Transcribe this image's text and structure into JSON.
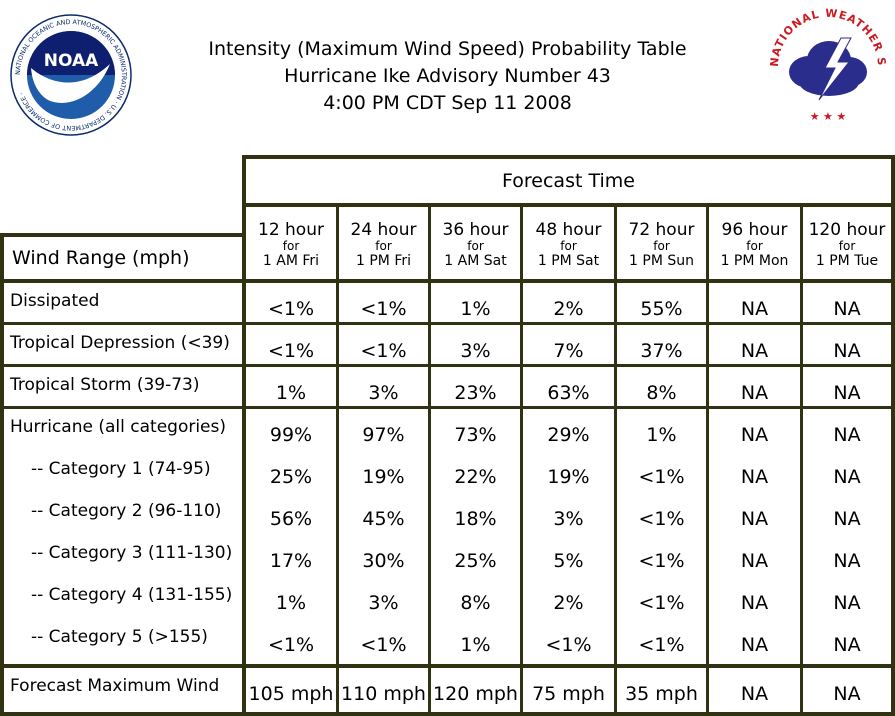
{
  "title": {
    "line1": "Intensity (Maximum Wind Speed) Probability Table",
    "line2": "Hurricane Ike Advisory Number 43",
    "line3": "4:00 PM CDT Sep 11 2008"
  },
  "logos": {
    "noaa_text": "NOAA",
    "noaa_ring_text": "NATIONAL OCEANIC AND ATMOSPHERIC ADMINISTRATION · U.S. DEPARTMENT OF COMMERCE ·",
    "nws_ring_text": "NATIONAL WEATHER SERVICE"
  },
  "table": {
    "forecast_time_label": "Forecast Time",
    "wind_range_label": "Wind Range (mph)",
    "columns": [
      {
        "hours": "12 hour",
        "for": "for",
        "when": "1 AM Fri"
      },
      {
        "hours": "24 hour",
        "for": "for",
        "when": "1 PM Fri"
      },
      {
        "hours": "36 hour",
        "for": "for",
        "when": "1 AM Sat"
      },
      {
        "hours": "48 hour",
        "for": "for",
        "when": "1 PM Sat"
      },
      {
        "hours": "72 hour",
        "for": "for",
        "when": "1 PM Sun"
      },
      {
        "hours": "96 hour",
        "for": "for",
        "when": "1 PM Mon"
      },
      {
        "hours": "120 hour",
        "for": "for",
        "when": "1 PM Tue"
      }
    ],
    "rows_dissipated": [
      {
        "label": "Dissipated",
        "values": [
          "<1%",
          "<1%",
          "1%",
          "2%",
          "55%",
          "NA",
          "NA"
        ]
      }
    ],
    "rows_td": [
      {
        "label": "Tropical Depression (<39)",
        "values": [
          "<1%",
          "<1%",
          "3%",
          "7%",
          "37%",
          "NA",
          "NA"
        ]
      }
    ],
    "rows_ts": [
      {
        "label": "Tropical Storm (39-73)",
        "values": [
          "1%",
          "3%",
          "23%",
          "63%",
          "8%",
          "NA",
          "NA"
        ]
      }
    ],
    "rows_hurricane": [
      {
        "label": "Hurricane (all categories)",
        "values": [
          "99%",
          "97%",
          "73%",
          "29%",
          "1%",
          "NA",
          "NA"
        ]
      },
      {
        "label": "-- Category 1 (74-95)",
        "values": [
          "25%",
          "19%",
          "22%",
          "19%",
          "<1%",
          "NA",
          "NA"
        ]
      },
      {
        "label": "-- Category 2 (96-110)",
        "values": [
          "56%",
          "45%",
          "18%",
          "3%",
          "<1%",
          "NA",
          "NA"
        ]
      },
      {
        "label": "-- Category 3 (111-130)",
        "values": [
          "17%",
          "30%",
          "25%",
          "5%",
          "<1%",
          "NA",
          "NA"
        ]
      },
      {
        "label": "-- Category 4 (131-155)",
        "values": [
          "1%",
          "3%",
          "8%",
          "2%",
          "<1%",
          "NA",
          "NA"
        ]
      },
      {
        "label": "-- Category 5 (>155)",
        "values": [
          "<1%",
          "<1%",
          "1%",
          "<1%",
          "<1%",
          "NA",
          "NA"
        ]
      }
    ],
    "rows_max": [
      {
        "label": "Forecast Maximum Wind",
        "values": [
          "105 mph",
          "110 mph",
          "120 mph",
          "75 mph",
          "35 mph",
          "NA",
          "NA"
        ]
      }
    ]
  }
}
